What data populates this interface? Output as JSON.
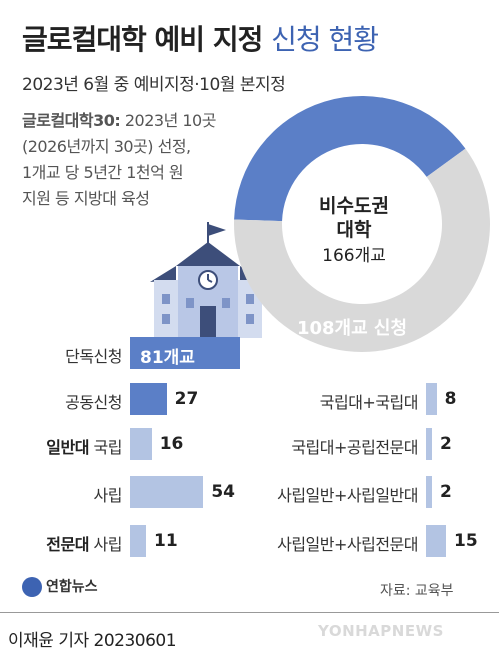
{
  "header": {
    "title_bold": "글로컬대학 예비 지정",
    "title_light": "신청 현황",
    "subtitle": "2023년 6월 중 예비지정·10월 본지정"
  },
  "description": {
    "highlight": "글로컬대학30:",
    "line1_rest": " 2023년 10곳",
    "line2": "(2026년까지 30곳) 선정,",
    "line3": "1개교 당 5년간 1천억 원",
    "line4": "지원 등 지방대 육성"
  },
  "colors": {
    "accent": "#5b7fc7",
    "bar_dark": "#5b7fc7",
    "bar_light": "#b3c4e3",
    "donut_gray": "#d9d9d9"
  },
  "chart_data": [
    {
      "type": "pie",
      "slices": [
        {
          "label": "108개교 신청",
          "value": 108
        },
        {
          "label": "비수도권 대학",
          "value": 166
        }
      ],
      "inner_label_line1": "비수도권",
      "inner_label_line2": "대학",
      "inner_label_line3": "166개교",
      "segment_label": "108개교 신청"
    },
    {
      "type": "bar",
      "orientation": "horizontal",
      "categories": [
        "단독신청",
        "공동신청",
        "일반대 국립",
        "사립",
        "전문대 사립"
      ],
      "category_parts": [
        {
          "bold": "",
          "text": "단독신청"
        },
        {
          "bold": "",
          "text": "공동신청"
        },
        {
          "bold": "일반대",
          "text": " 국립"
        },
        {
          "bold": "",
          "text": "사립"
        },
        {
          "bold": "전문대",
          "text": " 사립"
        }
      ],
      "values": [
        81,
        27,
        16,
        54,
        11
      ],
      "value_labels": [
        "81개교",
        "27",
        "16",
        "54",
        "11"
      ]
    },
    {
      "type": "bar",
      "orientation": "horizontal",
      "categories": [
        "국립대+국립대",
        "국립대+공립전문대",
        "사립일반+사립일반대",
        "사립일반+사립전문대"
      ],
      "values": [
        8,
        2,
        2,
        15
      ],
      "value_labels": [
        "8",
        "2",
        "2",
        "15"
      ]
    }
  ],
  "footer": {
    "logo_text": "연합뉴스",
    "source": "자료: 교육부",
    "reporter": "이재윤 기자  20230601",
    "watermark": "YONHAPNEWS"
  }
}
